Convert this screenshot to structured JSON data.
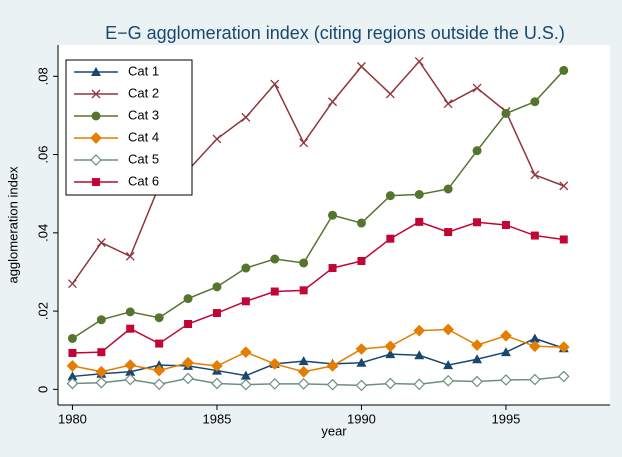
{
  "chart_data": {
    "type": "line",
    "title": "E−G agglomeration index (citing regions outside the U.S.)",
    "xlabel": "year",
    "ylabel": "agglomeration index",
    "x": [
      1980,
      1981,
      1982,
      1983,
      1984,
      1985,
      1986,
      1987,
      1988,
      1989,
      1990,
      1991,
      1992,
      1993,
      1994,
      1995,
      1996,
      1997
    ],
    "xlim": [
      1979.5,
      1998.6
    ],
    "xticks": [
      1980,
      1985,
      1990,
      1995
    ],
    "ylim": [
      -0.004,
      0.088
    ],
    "yticks": [
      0,
      {
        "value": 0.02,
        "label": ".02"
      },
      {
        "value": 0.04,
        "label": ".04"
      },
      {
        "value": 0.06,
        "label": ".06"
      },
      {
        "value": 0.08,
        "label": ".08"
      }
    ],
    "grid": false,
    "legend": "top-left",
    "series": [
      {
        "name": "Cat 1",
        "color": "#1a476f",
        "marker": "triangle",
        "values": [
          0.0033,
          0.004,
          0.0045,
          0.0062,
          0.006,
          0.0048,
          0.0035,
          0.0065,
          0.0072,
          0.0065,
          0.0068,
          0.009,
          0.0087,
          0.0062,
          0.0077,
          0.0095,
          0.013,
          0.0105
        ]
      },
      {
        "name": "Cat 2",
        "color": "#90353b",
        "marker": "x",
        "values": [
          0.027,
          0.0375,
          0.034,
          0.052,
          0.056,
          0.064,
          0.0695,
          0.078,
          0.063,
          0.0735,
          0.0825,
          0.0755,
          0.0838,
          0.073,
          0.077,
          0.071,
          0.0548,
          0.052
        ]
      },
      {
        "name": "Cat 3",
        "color": "#55752f",
        "marker": "circle",
        "values": [
          0.013,
          0.0178,
          0.0198,
          0.0183,
          0.0232,
          0.0262,
          0.031,
          0.0333,
          0.0323,
          0.0445,
          0.0425,
          0.0495,
          0.0498,
          0.0512,
          0.061,
          0.0705,
          0.0735,
          0.0815
        ]
      },
      {
        "name": "Cat 4",
        "color": "#e37e00",
        "marker": "diamond",
        "values": [
          0.006,
          0.0045,
          0.0062,
          0.0048,
          0.0068,
          0.006,
          0.0095,
          0.0065,
          0.0045,
          0.006,
          0.0103,
          0.011,
          0.015,
          0.0153,
          0.0113,
          0.0137,
          0.011,
          0.0108
        ]
      },
      {
        "name": "Cat 5",
        "color": "#6e8e84",
        "marker": "hollow-diamond",
        "values": [
          0.0015,
          0.0017,
          0.0025,
          0.0013,
          0.0028,
          0.0015,
          0.0012,
          0.0014,
          0.0014,
          0.0012,
          0.001,
          0.0015,
          0.0013,
          0.0022,
          0.002,
          0.0024,
          0.0025,
          0.0033
        ]
      },
      {
        "name": "Cat 6",
        "color": "#c10534",
        "marker": "square",
        "values": [
          0.0093,
          0.0095,
          0.0155,
          0.0117,
          0.0167,
          0.0195,
          0.0225,
          0.025,
          0.0253,
          0.031,
          0.0328,
          0.0385,
          0.0428,
          0.0402,
          0.0427,
          0.042,
          0.0393,
          0.0383
        ]
      }
    ]
  }
}
